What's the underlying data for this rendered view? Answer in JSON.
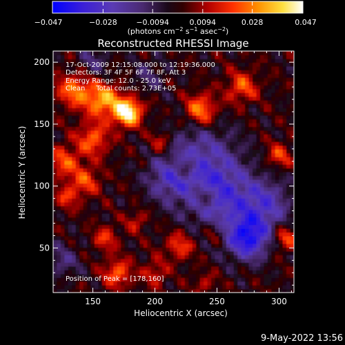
{
  "colorbar": {
    "tick_labels": [
      "−0.047",
      "−0.028",
      "−0.0094",
      "0.0094",
      "0.028",
      "0.047"
    ],
    "tick_values": [
      -0.047,
      -0.028,
      -0.0094,
      0.0094,
      0.028,
      0.047
    ],
    "range": [
      -0.047,
      0.047
    ],
    "units_prefix": "(photons cm",
    "units_exp1": "−2",
    "units_mid": " s",
    "units_exp2": "−1",
    "units_mid2": " asec",
    "units_exp3": "−2",
    "units_suffix": ")"
  },
  "chart_data": {
    "type": "heatmap",
    "title": "Reconstructed RHESSI Image",
    "xlabel": "Heliocentric X (arcsec)",
    "ylabel": "Heliocentric Y (arcsec)",
    "xlim": [
      118,
      312
    ],
    "ylim": [
      14,
      209
    ],
    "xticks": [
      150,
      200,
      250,
      300
    ],
    "yticks": [
      50,
      100,
      150,
      200
    ],
    "xtick_labels": [
      "150",
      "200",
      "250",
      "300"
    ],
    "ytick_labels": [
      "50",
      "100",
      "150",
      "200"
    ],
    "colormap": "IDL Rainbow/Fire (blue-purple-black-red-orange-yellow-white)",
    "value_range": [
      -0.047,
      0.047
    ],
    "peak": [
      178,
      160
    ],
    "annotations": [
      "17-Oct-2009 12:15:08.000 to 12:19:36.000",
      "Detectors: 3F 4F 5F 6F 7F 8F, Att 3",
      "Energy Range: 12.0 - 25.0 keV",
      "Clean     Total counts: 2.73E+05"
    ],
    "peak_label": "Position of Peak = [178,160]",
    "sources": [
      {
        "x": 178,
        "y": 160,
        "sigma": 8,
        "value": 0.047
      },
      {
        "x": 158,
        "y": 170,
        "sigma": 10,
        "value": 0.032
      },
      {
        "x": 135,
        "y": 178,
        "sigma": 10,
        "value": 0.026
      },
      {
        "x": 150,
        "y": 138,
        "sigma": 9,
        "value": 0.024
      },
      {
        "x": 127,
        "y": 120,
        "sigma": 9,
        "value": 0.022
      },
      {
        "x": 145,
        "y": 105,
        "sigma": 8,
        "value": 0.02
      },
      {
        "x": 130,
        "y": 92,
        "sigma": 7,
        "value": 0.018
      },
      {
        "x": 237,
        "y": 162,
        "sigma": 9,
        "value": 0.03
      },
      {
        "x": 270,
        "y": 180,
        "sigma": 9,
        "value": 0.022
      },
      {
        "x": 300,
        "y": 125,
        "sigma": 7,
        "value": 0.02
      },
      {
        "x": 205,
        "y": 135,
        "sigma": 7,
        "value": 0.018
      },
      {
        "x": 225,
        "y": 115,
        "sigma": 6,
        "value": 0.016
      },
      {
        "x": 240,
        "y": 92,
        "sigma": 6,
        "value": 0.016
      },
      {
        "x": 160,
        "y": 58,
        "sigma": 7,
        "value": 0.018
      },
      {
        "x": 185,
        "y": 72,
        "sigma": 6,
        "value": 0.014
      },
      {
        "x": 220,
        "y": 52,
        "sigma": 8,
        "value": 0.02
      },
      {
        "x": 248,
        "y": 62,
        "sigma": 6,
        "value": 0.014
      },
      {
        "x": 170,
        "y": 30,
        "sigma": 8,
        "value": 0.024
      },
      {
        "x": 200,
        "y": 30,
        "sigma": 7,
        "value": 0.016
      },
      {
        "x": 305,
        "y": 58,
        "sigma": 7,
        "value": 0.022
      },
      {
        "x": 240,
        "y": 22,
        "sigma": 6,
        "value": 0.012
      },
      {
        "x": 235,
        "y": 120,
        "sigma": 22,
        "value": -0.022
      },
      {
        "x": 255,
        "y": 90,
        "sigma": 20,
        "value": -0.024
      },
      {
        "x": 275,
        "y": 58,
        "sigma": 12,
        "value": -0.038
      },
      {
        "x": 290,
        "y": 85,
        "sigma": 14,
        "value": -0.022
      },
      {
        "x": 210,
        "y": 105,
        "sigma": 12,
        "value": -0.016
      },
      {
        "x": 150,
        "y": 200,
        "sigma": 10,
        "value": -0.012
      },
      {
        "x": 195,
        "y": 190,
        "sigma": 10,
        "value": -0.01
      },
      {
        "x": 125,
        "y": 40,
        "sigma": 10,
        "value": -0.014
      }
    ]
  },
  "footer": {
    "timestamp": "9-May-2022 13:56"
  }
}
